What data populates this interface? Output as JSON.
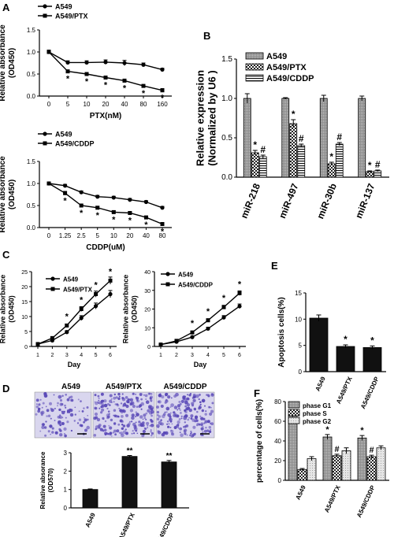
{
  "colors": {
    "ink": "#000000",
    "gray": "#9a9a9a",
    "light": "#d9d9d9",
    "stain": "#5b4ab8",
    "stain_bg": "#d9d6ee"
  },
  "panels": [
    {
      "letter": "A"
    },
    {
      "letter": "B"
    },
    {
      "letter": "C"
    },
    {
      "letter": "D"
    },
    {
      "letter": "E"
    },
    {
      "letter": "F"
    }
  ],
  "chart_data": [
    {
      "id": "A1",
      "type": "line",
      "x_categories": [
        "0",
        "5",
        "10",
        "20",
        "40",
        "80",
        "160"
      ],
      "xlabel": "PTX(nM)",
      "ylabel_lines": [
        "Relative absorbance",
        "(OD450)"
      ],
      "ylim": [
        0.0,
        1.5
      ],
      "yticks": [
        "0.0",
        "0.5",
        "1.0",
        "1.5"
      ],
      "series": [
        {
          "name": "A549",
          "marker": "circle",
          "values": [
            1.0,
            0.76,
            0.76,
            0.77,
            0.75,
            0.71,
            0.6
          ],
          "errors": [
            0.04,
            0.04,
            0.04,
            0.05,
            0.06,
            0.04,
            0.03
          ]
        },
        {
          "name": "A549/PTX",
          "marker": "square",
          "values": [
            1.0,
            0.56,
            0.5,
            0.42,
            0.35,
            0.23,
            0.13
          ],
          "errors": [
            0.04,
            0.03,
            0.03,
            0.03,
            0.03,
            0.03,
            0.04
          ]
        }
      ],
      "annotations": [
        {
          "x": "5",
          "text": "*"
        },
        {
          "x": "10",
          "text": "*"
        },
        {
          "x": "20",
          "text": "*"
        },
        {
          "x": "40",
          "text": "*"
        },
        {
          "x": "80",
          "text": "*"
        },
        {
          "x": "160",
          "text": "*"
        }
      ]
    },
    {
      "id": "A2",
      "type": "line",
      "x_categories": [
        "0",
        "1.25",
        "2.5",
        "5",
        "10",
        "20",
        "40",
        "80"
      ],
      "xlabel": "CDDP(uM)",
      "ylabel_lines": [
        "Relative absorbance",
        "(OD450)"
      ],
      "ylim": [
        0.0,
        1.5
      ],
      "yticks": [
        "0.0",
        "0.5",
        "1.0",
        "1.5"
      ],
      "series": [
        {
          "name": "A549",
          "marker": "circle",
          "values": [
            1.0,
            0.95,
            0.8,
            0.7,
            0.68,
            0.63,
            0.58,
            0.45
          ],
          "errors": [
            0.03,
            0.03,
            0.03,
            0.03,
            0.03,
            0.03,
            0.03,
            0.03
          ]
        },
        {
          "name": "A549/CDDP",
          "marker": "square",
          "values": [
            1.0,
            0.78,
            0.5,
            0.45,
            0.35,
            0.33,
            0.23,
            0.08
          ],
          "errors": [
            0.03,
            0.04,
            0.03,
            0.03,
            0.03,
            0.03,
            0.03,
            0.03
          ]
        }
      ],
      "annotations": [
        {
          "x": "1.25",
          "text": "*"
        },
        {
          "x": "2.5",
          "text": "*"
        },
        {
          "x": "5",
          "text": "*"
        },
        {
          "x": "10",
          "text": "*"
        },
        {
          "x": "20",
          "text": "*"
        },
        {
          "x": "40",
          "text": "*"
        },
        {
          "x": "80",
          "text": "*"
        }
      ]
    },
    {
      "id": "B",
      "type": "bar",
      "categories": [
        "miR-218",
        "miR-497",
        "miR-30b",
        "miR-137"
      ],
      "ylabel_lines": [
        "Relative expression",
        "(Normalized by U6 )"
      ],
      "ylim": [
        0.0,
        1.5
      ],
      "yticks": [
        "0.0",
        "0.5",
        "1.0",
        "1.5"
      ],
      "series": [
        {
          "name": "A549",
          "pattern": "dense",
          "values": [
            1.0,
            1.0,
            1.0,
            1.0
          ],
          "errors": [
            0.06,
            0.01,
            0.04,
            0.03
          ]
        },
        {
          "name": "A549/PTX",
          "pattern": "checker",
          "values": [
            0.31,
            0.68,
            0.17,
            0.07
          ],
          "errors": [
            0.03,
            0.05,
            0.02,
            0.01
          ]
        },
        {
          "name": "A549/CDDP",
          "pattern": "stripes",
          "values": [
            0.26,
            0.4,
            0.42,
            0.08
          ],
          "errors": [
            0.02,
            0.02,
            0.02,
            0.01
          ]
        }
      ],
      "marks": [
        {
          "category": "miR-218",
          "series": 1,
          "text": "*"
        },
        {
          "category": "miR-218",
          "series": 2,
          "text": "#"
        },
        {
          "category": "miR-497",
          "series": 1,
          "text": "*"
        },
        {
          "category": "miR-497",
          "series": 2,
          "text": "#"
        },
        {
          "category": "miR-30b",
          "series": 1,
          "text": "*"
        },
        {
          "category": "miR-30b",
          "series": 2,
          "text": "#"
        },
        {
          "category": "miR-137",
          "series": 1,
          "text": "*"
        },
        {
          "category": "miR-137",
          "series": 2,
          "text": "#"
        }
      ]
    },
    {
      "id": "C1",
      "type": "line",
      "x_categories": [
        "1",
        "2",
        "3",
        "4",
        "5",
        "6"
      ],
      "xlabel": "Day",
      "ylabel_lines": [
        "Relative absorbance",
        "(OD450)"
      ],
      "ylim": [
        0,
        25
      ],
      "yticks": [
        "0",
        "5",
        "10",
        "15",
        "20",
        "25"
      ],
      "series": [
        {
          "name": "A549",
          "marker": "circle",
          "values": [
            0.8,
            2.0,
            4.8,
            9.5,
            13.5,
            17.5
          ],
          "errors": [
            0.2,
            0.3,
            0.5,
            0.8,
            1.0,
            1.2
          ]
        },
        {
          "name": "A549/PTX",
          "marker": "square",
          "values": [
            0.8,
            2.8,
            7.0,
            12.5,
            17.5,
            22.0
          ],
          "errors": [
            0.2,
            0.3,
            0.5,
            0.8,
            1.0,
            1.2
          ]
        }
      ],
      "annotations": [
        {
          "x": "3",
          "text": "*"
        },
        {
          "x": "4",
          "text": "*"
        },
        {
          "x": "5",
          "text": "*"
        },
        {
          "x": "6",
          "text": "*"
        }
      ]
    },
    {
      "id": "C2",
      "type": "line",
      "x_categories": [
        "1",
        "2",
        "3",
        "4",
        "5",
        "6"
      ],
      "xlabel": "Day",
      "ylabel_lines": [
        "Relative absorbance",
        "(OD450)"
      ],
      "ylim": [
        0,
        40
      ],
      "yticks": [
        "0",
        "10",
        "20",
        "30",
        "40"
      ],
      "series": [
        {
          "name": "A549",
          "marker": "circle",
          "values": [
            1.0,
            2.5,
            5.0,
            9.5,
            15.5,
            21.5
          ],
          "errors": [
            0.3,
            0.3,
            0.5,
            0.8,
            1.0,
            1.2
          ]
        },
        {
          "name": "A549/CDDP",
          "marker": "square",
          "values": [
            1.0,
            3.0,
            7.5,
            14.0,
            21.0,
            28.5
          ],
          "errors": [
            0.3,
            0.3,
            0.5,
            0.8,
            1.0,
            1.2
          ]
        }
      ],
      "annotations": [
        {
          "x": "3",
          "text": "*"
        },
        {
          "x": "4",
          "text": "*"
        },
        {
          "x": "5",
          "text": "*"
        },
        {
          "x": "6",
          "text": "*"
        }
      ]
    },
    {
      "id": "D",
      "type": "bar",
      "categories": [
        "A549",
        "A549/PTX",
        "A549/CDDP"
      ],
      "ylabel_lines": [
        "Relative absorance",
        "(OD570)"
      ],
      "ylim": [
        0,
        3
      ],
      "yticks": [
        "0",
        "1",
        "2",
        "3"
      ],
      "series": [
        {
          "values": [
            1.0,
            2.8,
            2.5
          ],
          "errors": [
            0.03,
            0.05,
            0.08
          ]
        }
      ],
      "marks": [
        {
          "category": "A549/PTX",
          "text": "**"
        },
        {
          "category": "A549/CDDP",
          "text": "**"
        }
      ]
    },
    {
      "id": "E",
      "type": "bar",
      "categories": [
        "A549",
        "A549/PTX",
        "A549/CDDP"
      ],
      "ylabel_lines": [
        "Apoptosis cells(%)"
      ],
      "ylim": [
        0,
        15
      ],
      "yticks": [
        "0",
        "5",
        "10",
        "15"
      ],
      "series": [
        {
          "values": [
            10.2,
            4.8,
            4.6
          ],
          "errors": [
            0.6,
            0.3,
            0.3
          ]
        }
      ],
      "marks": [
        {
          "category": "A549/PTX",
          "text": "*"
        },
        {
          "category": "A549/CDDP",
          "text": "*"
        }
      ]
    },
    {
      "id": "F",
      "type": "bar",
      "categories": [
        "A549",
        "A549/PTX",
        "A549/CDDP"
      ],
      "ylabel_lines": [
        "percentage of cells(%)"
      ],
      "ylim": [
        0,
        80
      ],
      "yticks": [
        "0",
        "20",
        "40",
        "60",
        "80"
      ],
      "series": [
        {
          "name": "phase G1",
          "pattern": "dense",
          "values": [
            66,
            44,
            43
          ],
          "errors": [
            1.5,
            2.5,
            2.5
          ]
        },
        {
          "name": "phase S",
          "pattern": "checker",
          "values": [
            11,
            25,
            24
          ],
          "errors": [
            1,
            1.5,
            1.5
          ]
        },
        {
          "name": "phase G2",
          "pattern": "light",
          "values": [
            22,
            30,
            33
          ],
          "errors": [
            2,
            3,
            2
          ]
        }
      ],
      "marks": [
        {
          "category": "A549/PTX",
          "series": 0,
          "text": "*"
        },
        {
          "category": "A549/PTX",
          "series": 1,
          "text": "#"
        },
        {
          "category": "A549/CDDP",
          "series": 0,
          "text": "*"
        },
        {
          "category": "A549/CDDP",
          "series": 1,
          "text": "#"
        }
      ]
    }
  ],
  "micrographs": {
    "labels": [
      "A549",
      "A549/PTX",
      "A549/CDDP"
    ]
  }
}
